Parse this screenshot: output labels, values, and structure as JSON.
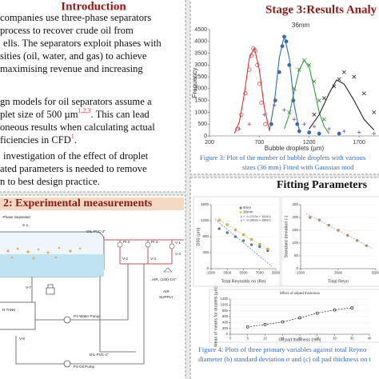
{
  "intro": {
    "title": "Introduction",
    "lines": [
      "companies use three-phase separators",
      "process to recover crude oil from",
      "ells. The separators exploit phases with",
      "sities (oil, water, and gas) to achieve",
      "maximising revenue and increasing",
      "gn models for oil separators assume a",
      [
        "plet size of 500 µm",
        "1,2,3",
        ". This can lead"
      ],
      "oneous results when calculating actual",
      [
        "ficiencies in CFD",
        "1",
        "."
      ],
      "investigation of the effect of droplet",
      "ated parameters is needed to remove",
      "n to best design practice."
    ]
  },
  "experimental": {
    "title": "2: Experimental measurements",
    "labels": [
      "-Phase Separator",
      "S-1",
      "OIL-PVC-2\"",
      "PI-2",
      "PI-3",
      "V-1",
      "V-4",
      "V-2",
      "V-3",
      "AIR, (145)-1/4\"",
      "AIR",
      "SUPPLY",
      "V-7",
      "R TANK",
      "P1-Water Pump",
      "V-8",
      "DIL-PVC-1\"",
      "P2-Oil Pump"
    ]
  },
  "results": {
    "title": "Stage 3:Results Analy",
    "caption": [
      "Figure 3: Plot of the number of bubble droplets with various",
      "sizes (36 mm) Fitted  with Gaussian mod"
    ]
  },
  "fitting": {
    "title": "Fitting Parameters",
    "caption": [
      "Figure 4: Plots of three primary variables against total Reyno",
      "diameter (b) standard deviation σ and (c) oil pad thickness on t"
    ]
  },
  "chart_data": [
    {
      "type": "scatter",
      "title": "36mm",
      "xlabel": "Bubble droplets (µm)",
      "ylabel": "Frequency",
      "xlim": [
        200,
        1900
      ],
      "ylim": [
        0,
        4500
      ],
      "xticks": [
        200,
        700,
        1200,
        1700
      ],
      "yticks": [
        0,
        500,
        1000,
        1500,
        2000,
        2500,
        3000,
        3500,
        4000,
        4500
      ],
      "grid": false,
      "series": [
        {
          "color": "#e0302b",
          "marker": "o",
          "line": "none",
          "x": [
            480,
            520,
            560,
            600,
            620,
            640,
            660,
            680,
            700,
            720,
            760
          ],
          "values": [
            300,
            900,
            1800,
            2800,
            3400,
            3700,
            3600,
            3000,
            2200,
            1400,
            500
          ]
        },
        {
          "color": "#e0302b",
          "marker": "none",
          "line": "solid",
          "x": [
            450,
            500,
            550,
            600,
            650,
            700,
            750,
            800
          ],
          "values": [
            100,
            600,
            1800,
            3300,
            3720,
            2800,
            1200,
            250
          ]
        },
        {
          "color": "#2f6db5",
          "marker": "dot",
          "line": "none",
          "x": [
            820,
            860,
            900,
            930,
            950,
            970,
            1000,
            1040,
            1080,
            1100,
            1200,
            1300,
            1500
          ],
          "values": [
            500,
            1500,
            2700,
            3800,
            4200,
            4000,
            3000,
            1500,
            500,
            200,
            150,
            100,
            100
          ]
        },
        {
          "color": "#2f6db5",
          "marker": "none",
          "line": "solid",
          "x": [
            800,
            850,
            900,
            950,
            1000,
            1050,
            1100
          ],
          "values": [
            200,
            1400,
            3300,
            4230,
            3300,
            1300,
            250
          ]
        },
        {
          "color": "#3a7d2c",
          "marker": "x",
          "line": "none",
          "x": [
            1000,
            1050,
            1100,
            1150,
            1200,
            1250,
            1300,
            1350
          ],
          "values": [
            1000,
            2000,
            2800,
            3200,
            3000,
            2300,
            1500,
            700
          ]
        },
        {
          "color": "#2ea043",
          "marker": "none",
          "line": "solid",
          "x": [
            950,
            1000,
            1050,
            1100,
            1150,
            1200,
            1250,
            1300,
            1350,
            1400
          ],
          "values": [
            300,
            900,
            1900,
            2800,
            3200,
            2900,
            2000,
            1000,
            400,
            100
          ]
        },
        {
          "color": "#222222",
          "marker": "x",
          "line": "none",
          "x": [
            1250,
            1350,
            1450,
            1500,
            1550,
            1650,
            1750,
            1850
          ],
          "values": [
            900,
            1600,
            2100,
            2400,
            2700,
            2500,
            1800,
            1000
          ]
        },
        {
          "color": "#222222",
          "marker": "none",
          "line": "solid",
          "x": [
            1200,
            1300,
            1400,
            1475,
            1550,
            1650,
            1750,
            1850
          ],
          "values": [
            300,
            900,
            1800,
            2370,
            2200,
            1500,
            700,
            250
          ]
        },
        {
          "color": "#7b4fb0",
          "marker": "+",
          "line": "none",
          "x": [
            500,
            600,
            750,
            850,
            950,
            1050,
            1150,
            1250,
            1400,
            1550,
            1700,
            1850
          ],
          "values": [
            300,
            500,
            900,
            1300,
            1100,
            700,
            500,
            400,
            300,
            200,
            150,
            100
          ]
        }
      ]
    },
    {
      "type": "scatter",
      "xlabel": "Total Reynolds no (Re)",
      "ylabel": "D50 (µm)",
      "xlim": [
        1500,
        9500
      ],
      "ylim": [
        0,
        1600
      ],
      "xticks": [
        1500,
        3500,
        5500,
        7500,
        9500
      ],
      "yticks": [
        0,
        400,
        800,
        1200,
        1600
      ],
      "grid": true,
      "annotations": [
        "y = -0.1213x + 1518.1",
        "y = -0.1663x + 1564.1"
      ],
      "series": [
        {
          "name": "9mm",
          "color": "#4a7fc1",
          "marker": "dot",
          "line": "none",
          "x": [
            2500,
            3500,
            4500,
            5500,
            6500,
            7500,
            8500
          ],
          "values": [
            1000,
            900,
            800,
            700,
            600,
            550,
            450
          ]
        },
        {
          "name": "36mm",
          "color": "#f2c233",
          "marker": "dot",
          "line": "none",
          "x": [
            2500,
            3500,
            4500,
            5500,
            6500,
            7500,
            8500
          ],
          "values": [
            1215,
            1100,
            970,
            850,
            730,
            610,
            490
          ]
        },
        {
          "color": "#4a7fc1",
          "marker": "none",
          "line": "dashed",
          "x": [
            2000,
            9000
          ],
          "values": [
            1230,
            60
          ]
        },
        {
          "color": "#f2c233",
          "marker": "none",
          "line": "dashed",
          "x": [
            2000,
            9000
          ],
          "values": [
            1275,
            430
          ]
        }
      ]
    },
    {
      "type": "scatter",
      "xlabel": "Total Reyn",
      "ylabel": "Standard deviation (-)",
      "xlim": [
        1500,
        5500
      ],
      "ylim": [
        0,
        250
      ],
      "xticks": [
        1500,
        3500,
        5500
      ],
      "yticks": [
        0,
        50,
        100,
        150,
        200,
        250
      ],
      "grid": true,
      "series": [
        {
          "color": "#ed8a2e",
          "marker": "dot",
          "line": "none",
          "x": [
            2000,
            2500,
            3000,
            3500,
            4000,
            4500,
            5000
          ],
          "values": [
            200,
            190,
            170,
            150,
            130,
            110,
            90
          ]
        },
        {
          "color": "#8ea3c2",
          "marker": "none",
          "line": "dashed",
          "x": [
            1800,
            5300
          ],
          "values": [
            215,
            80
          ]
        }
      ]
    },
    {
      "type": "line",
      "title": "Effect of oilpad thickness",
      "xlabel": "Oil pad thickness (mm)",
      "ylabel": "Mean of means for droplets (µm)",
      "xlim": [
        0,
        40
      ],
      "ylim": [
        0,
        1200
      ],
      "xticks": [
        0,
        5,
        10,
        15,
        20,
        25,
        30,
        35,
        40
      ],
      "yticks": [
        0,
        200,
        400,
        600,
        800,
        1000,
        1200
      ],
      "grid": true,
      "series": [
        {
          "color": "#222222",
          "marker": "o",
          "line": "dashed",
          "x": [
            5,
            10,
            15,
            20,
            25,
            30,
            35
          ],
          "values": [
            250,
            330,
            420,
            560,
            720,
            830,
            900
          ]
        }
      ]
    }
  ]
}
